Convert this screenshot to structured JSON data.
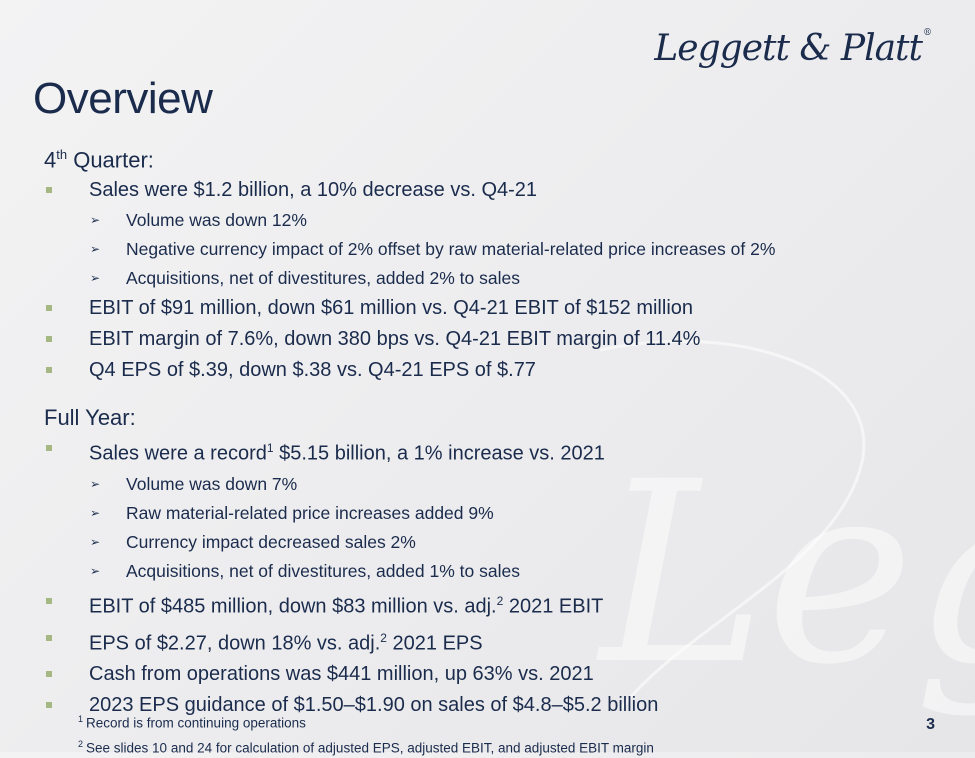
{
  "logo": {
    "text": "Leggett & Platt",
    "reg": "®"
  },
  "title": "Overview",
  "watermark": "Legg",
  "q4": {
    "heading_num": "4",
    "heading_sup": "th",
    "heading_rest": " Quarter:",
    "sales": "Sales were $1.2 billion, a 10% decrease vs. Q4-21",
    "sales_subs": [
      "Volume was down 12%",
      "Negative currency impact of 2% offset by raw material-related price increases of 2%",
      "Acquisitions, net of divestitures, added 2% to sales"
    ],
    "ebit": "EBIT of $91 million, down $61 million vs. Q4-21 EBIT of $152 million",
    "ebit_margin": "EBIT margin of 7.6%, down 380 bps vs. Q4-21 EBIT margin of 11.4%",
    "eps": "Q4 EPS of $.39, down $.38 vs. Q4-21 EPS of $.77"
  },
  "fy": {
    "heading": "Full Year:",
    "sales_a": "Sales were a record",
    "sales_sup": "1",
    "sales_b": " $5.15 billion, a 1% increase vs. 2021",
    "sales_subs": [
      "Volume was down 7%",
      "Raw material-related price increases added 9%",
      "Currency impact decreased sales 2%",
      "Acquisitions, net of divestitures, added 1% to sales"
    ],
    "ebit_a": "EBIT of $485 million, down $83 million vs. adj.",
    "ebit_sup": "2",
    "ebit_b": " 2021 EBIT",
    "eps_a": "EPS of $2.27, down 18% vs. adj.",
    "eps_sup": "2",
    "eps_b": " 2021 EPS",
    "cash": "Cash from operations was $441 million, up 63% vs. 2021",
    "guidance": "2023 EPS guidance of $1.50–$1.90 on sales of $4.8–$5.2 billion"
  },
  "footnotes": [
    {
      "num": "1",
      "text": "Record is from continuing operations"
    },
    {
      "num": "2",
      "text": "See slides 10 and 24 for calculation of adjusted EPS, adjusted EBIT, and adjusted EBIT margin"
    }
  ],
  "page_number": "3",
  "colors": {
    "navy": "#1a2b4c",
    "bullet": "#a5b883"
  }
}
